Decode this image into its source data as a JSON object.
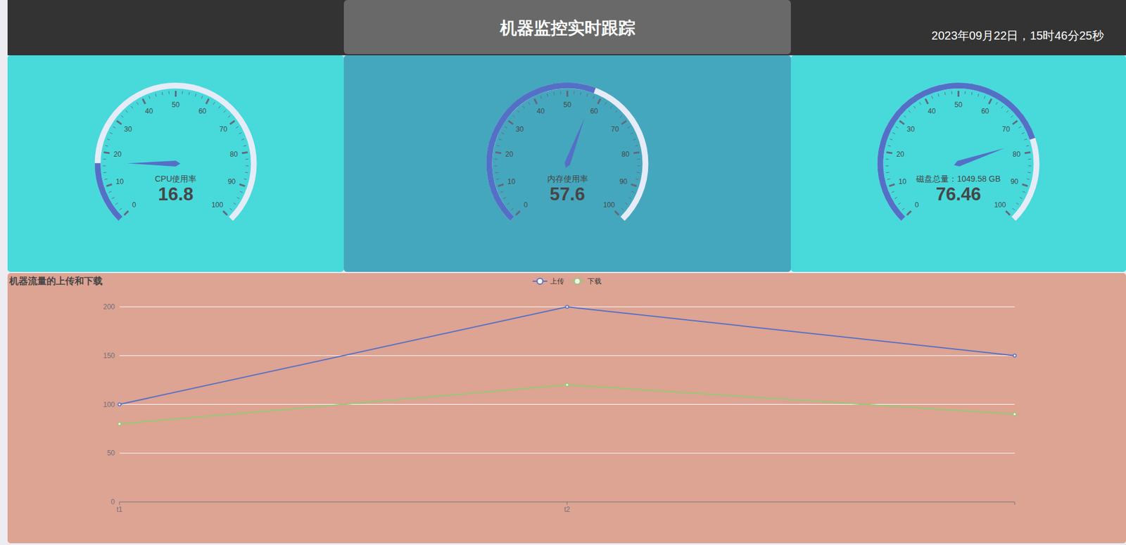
{
  "header": {
    "title": "机器监控实时跟踪",
    "date": "2023年09月22日，15时46分25秒"
  },
  "chart_data": [
    {
      "type": "gauge",
      "title": "CPU使用率",
      "value": 16.8,
      "ylim": [
        0,
        100
      ],
      "yticks": [
        0,
        10,
        20,
        30,
        40,
        50,
        60,
        70,
        80,
        90,
        100
      ],
      "color": "#5470c6"
    },
    {
      "type": "gauge",
      "title": "内存使用率",
      "value": 57.6,
      "ylim": [
        0,
        100
      ],
      "yticks": [
        0,
        10,
        20,
        30,
        40,
        50,
        60,
        70,
        80,
        90,
        100
      ],
      "color": "#5470c6"
    },
    {
      "type": "gauge",
      "title": "磁盘总量：1049.58 GB",
      "value": 76.46,
      "ylim": [
        0,
        100
      ],
      "yticks": [
        0,
        10,
        20,
        30,
        40,
        50,
        60,
        70,
        80,
        90,
        100
      ],
      "color": "#5470c6"
    },
    {
      "type": "line",
      "title": "机器流量的上传和下载",
      "categories": [
        "t1",
        "t2",
        null
      ],
      "series": [
        {
          "name": "上传",
          "color": "#5470c6",
          "values": [
            100,
            200,
            150
          ]
        },
        {
          "name": "下载",
          "color": "#91cc75",
          "values": [
            80,
            120,
            90
          ]
        }
      ],
      "ylim": [
        0,
        200
      ],
      "yticks": [
        0,
        50,
        100,
        150,
        200
      ],
      "grid": true,
      "legend": "top",
      "marker": "circle"
    }
  ]
}
